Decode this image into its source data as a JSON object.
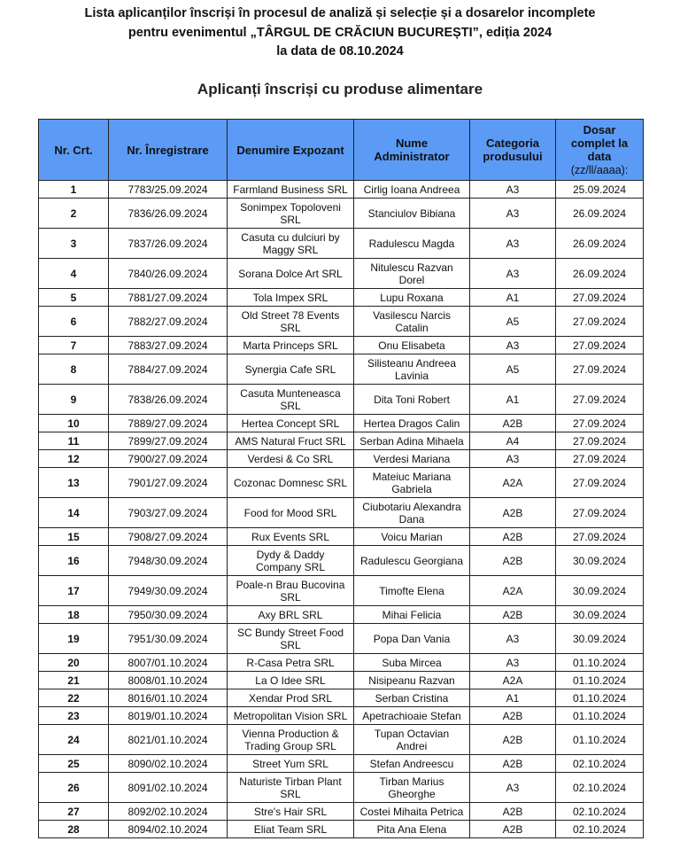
{
  "header": {
    "title_lines": [
      "Lista aplicanților înscriși în procesul de analiză și selecție și a dosarelor incomplete",
      "pentru evenimentul „TÂRGUL DE CRĂCIUN BUCUREȘTI”, ediția 2024",
      "la data de 08.10.2024"
    ],
    "subtitle": "Aplicanți înscriși cu produse alimentare"
  },
  "colors": {
    "header_bg": "#5b9bf5"
  },
  "table": {
    "columns": {
      "nr": "Nr. Crt.",
      "registration": "Nr. Înregistrare",
      "exhibitor": "Denumire Expozant",
      "admin": "Nume\nAdministrator",
      "category": "Categoria\nprodusului",
      "complete": "Dosar\ncomplet la\ndata",
      "complete_format": "(zz/ll/aaaa):"
    },
    "rows": [
      [
        "1",
        "7783/25.09.2024",
        "Farmland Business SRL",
        "Cirlig Ioana Andreea",
        "A3",
        "25.09.2024"
      ],
      [
        "2",
        "7836/26.09.2024",
        "Sonimpex Topoloveni\nSRL",
        "Stanciulov Bibiana",
        "A3",
        "26.09.2024"
      ],
      [
        "3",
        "7837/26.09.2024",
        "Casuta cu dulciuri by\nMaggy SRL",
        "Radulescu Magda",
        "A3",
        "26.09.2024"
      ],
      [
        "4",
        "7840/26.09.2024",
        "Sorana Dolce Art SRL",
        "Nitulescu Razvan\nDorel",
        "A3",
        "26.09.2024"
      ],
      [
        "5",
        "7881/27.09.2024",
        "Tola Impex SRL",
        "Lupu Roxana",
        "A1",
        "27.09.2024"
      ],
      [
        "6",
        "7882/27.09.2024",
        "Old Street 78 Events\nSRL",
        "Vasilescu Narcis\nCatalin",
        "A5",
        "27.09.2024"
      ],
      [
        "7",
        "7883/27.09.2024",
        "Marta Princeps SRL",
        "Onu Elisabeta",
        "A3",
        "27.09.2024"
      ],
      [
        "8",
        "7884/27.09.2024",
        "Synergia Cafe SRL",
        "Silisteanu Andreea\nLavinia",
        "A5",
        "27.09.2024"
      ],
      [
        "9",
        "7838/26.09.2024",
        "Casuta Munteneasca\nSRL",
        "Dita Toni Robert",
        "A1",
        "27.09.2024"
      ],
      [
        "10",
        "7889/27.09.2024",
        "Hertea Concept SRL",
        "Hertea Dragos Calin",
        "A2B",
        "27.09.2024"
      ],
      [
        "11",
        "7899/27.09.2024",
        "AMS Natural Fruct SRL",
        "Serban Adina Mihaela",
        "A4",
        "27.09.2024"
      ],
      [
        "12",
        "7900/27.09.2024",
        "Verdesi & Co SRL",
        "Verdesi Mariana",
        "A3",
        "27.09.2024"
      ],
      [
        "13",
        "7901/27.09.2024",
        "Cozonac Domnesc SRL",
        "Mateiuc Mariana\nGabriela",
        "A2A",
        "27.09.2024"
      ],
      [
        "14",
        "7903/27.09.2024",
        "Food for Mood SRL",
        "Ciubotariu Alexandra\nDana",
        "A2B",
        "27.09.2024"
      ],
      [
        "15",
        "7908/27.09.2024",
        "Rux Events SRL",
        "Voicu Marian",
        "A2B",
        "27.09.2024"
      ],
      [
        "16",
        "7948/30.09.2024",
        "Dydy & Daddy\nCompany SRL",
        "Radulescu Georgiana",
        "A2B",
        "30.09.2024"
      ],
      [
        "17",
        "7949/30.09.2024",
        "Poale-n Brau Bucovina\nSRL",
        "Timofte Elena",
        "A2A",
        "30.09.2024"
      ],
      [
        "18",
        "7950/30.09.2024",
        "Axy BRL SRL",
        "Mihai Felicia",
        "A2B",
        "30.09.2024"
      ],
      [
        "19",
        "7951/30.09.2024",
        "SC Bundy Street Food\nSRL",
        "Popa Dan Vania",
        "A3",
        "30.09.2024"
      ],
      [
        "20",
        "8007/01.10.2024",
        "R-Casa Petra SRL",
        "Suba Mircea",
        "A3",
        "01.10.2024"
      ],
      [
        "21",
        "8008/01.10.2024",
        "La O Idee SRL",
        "Nisipeanu Razvan",
        "A2A",
        "01.10.2024"
      ],
      [
        "22",
        "8016/01.10.2024",
        "Xendar Prod SRL",
        "Serban Cristina",
        "A1",
        "01.10.2024"
      ],
      [
        "23",
        "8019/01.10.2024",
        "Metropolitan Vision SRL",
        "Apetrachioaie Stefan",
        "A2B",
        "01.10.2024"
      ],
      [
        "24",
        "8021/01.10.2024",
        "Vienna Production &\nTrading Group SRL",
        "Tupan Octavian\nAndrei",
        "A2B",
        "01.10.2024"
      ],
      [
        "25",
        "8090/02.10.2024",
        "Street Yum SRL",
        "Stefan Andreescu",
        "A2B",
        "02.10.2024"
      ],
      [
        "26",
        "8091/02.10.2024",
        "Naturiste Tirban Plant\nSRL",
        "Tirban Marius\nGheorghe",
        "A3",
        "02.10.2024"
      ],
      [
        "27",
        "8092/02.10.2024",
        "Stre's Hair SRL",
        "Costei Mihaita Petrica",
        "A2B",
        "02.10.2024"
      ],
      [
        "28",
        "8094/02.10.2024",
        "Eliat Team SRL",
        "Pita Ana Elena",
        "A2B",
        "02.10.2024"
      ]
    ]
  }
}
